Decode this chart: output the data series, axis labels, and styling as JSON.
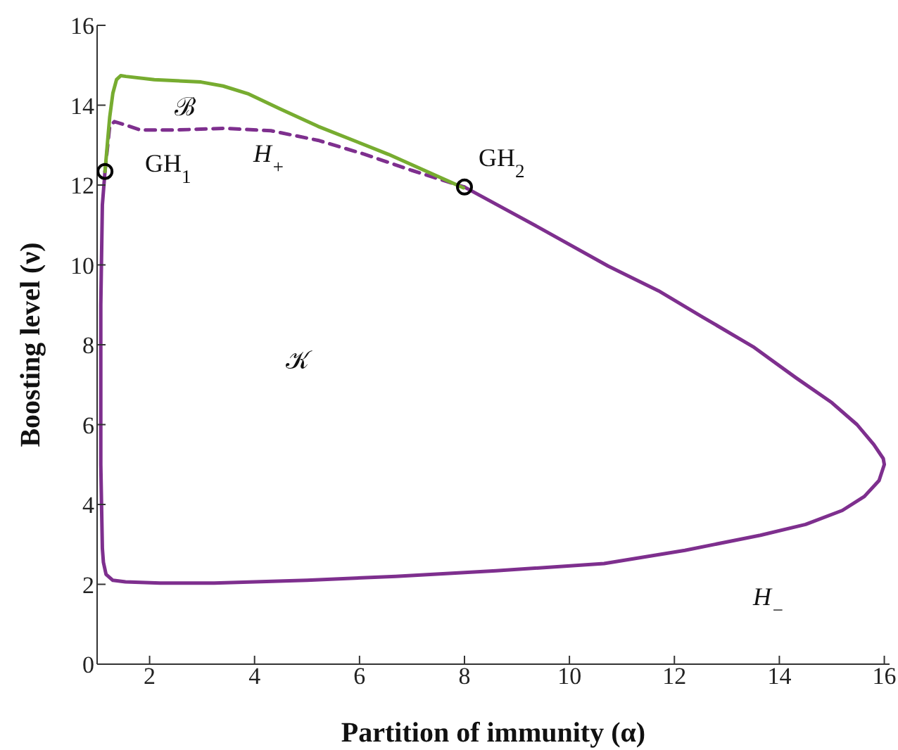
{
  "chart_data": {
    "type": "line",
    "xlabel": "Partition of immunity (α)",
    "ylabel": "Boosting level (ν)",
    "xlim": [
      1,
      16.1
    ],
    "ylim": [
      0,
      16
    ],
    "xticks": [
      2,
      4,
      6,
      8,
      10,
      12,
      14,
      16
    ],
    "yticks": [
      0,
      2,
      4,
      6,
      8,
      10,
      12,
      14,
      16
    ],
    "series": [
      {
        "color": "#7e2f8e",
        "line_style": "solid",
        "x": [
          8.0,
          9.4,
          10.74,
          11.7,
          12.53,
          13.5,
          14.32,
          15.0,
          15.48,
          15.8,
          15.98,
          16.0,
          15.9,
          15.62,
          15.2,
          14.5,
          13.64,
          12.2,
          10.66,
          8.6,
          6.69,
          5.0,
          3.23,
          2.2,
          1.54,
          1.3,
          1.17,
          1.12,
          1.1,
          1.07,
          1.07,
          1.1,
          1.15
        ],
        "values": [
          11.95,
          10.95,
          9.97,
          9.35,
          8.7,
          7.95,
          7.17,
          6.55,
          6.0,
          5.5,
          5.15,
          5.0,
          4.6,
          4.2,
          3.85,
          3.5,
          3.23,
          2.85,
          2.52,
          2.34,
          2.2,
          2.1,
          2.03,
          2.03,
          2.06,
          2.1,
          2.25,
          2.55,
          2.9,
          5.0,
          9.0,
          11.5,
          12.34
        ]
      },
      {
        "color": "#7e2f8e",
        "line_style": "dashed",
        "x": [
          1.15,
          1.24,
          1.33,
          1.55,
          1.82,
          2.53,
          3.43,
          4.31,
          5.21,
          6.1,
          6.99,
          8.0
        ],
        "values": [
          12.34,
          13.47,
          13.59,
          13.5,
          13.38,
          13.38,
          13.42,
          13.36,
          13.12,
          12.77,
          12.37,
          11.95
        ]
      },
      {
        "color": "#77ac30",
        "line_style": "solid",
        "x": [
          1.15,
          1.2,
          1.24,
          1.3,
          1.37,
          1.45,
          1.55,
          2.09,
          2.98,
          3.4,
          3.87,
          4.5,
          5.21,
          6.55,
          7.98
        ],
        "values": [
          12.34,
          13.1,
          13.7,
          14.3,
          14.64,
          14.74,
          14.72,
          14.64,
          14.58,
          14.48,
          14.29,
          13.9,
          13.47,
          12.77,
          11.93
        ]
      },
      {
        "type": "scatter",
        "color": "#000000",
        "marker": "circle",
        "x": [
          1.15,
          8.0
        ],
        "values": [
          12.34,
          11.95
        ]
      }
    ],
    "annotations": [
      "GH$_{1}$",
      "GH$_{2}$",
      "ℬ",
      "H$_{+}$",
      "𝒦",
      "H$_{−}$"
    ]
  }
}
